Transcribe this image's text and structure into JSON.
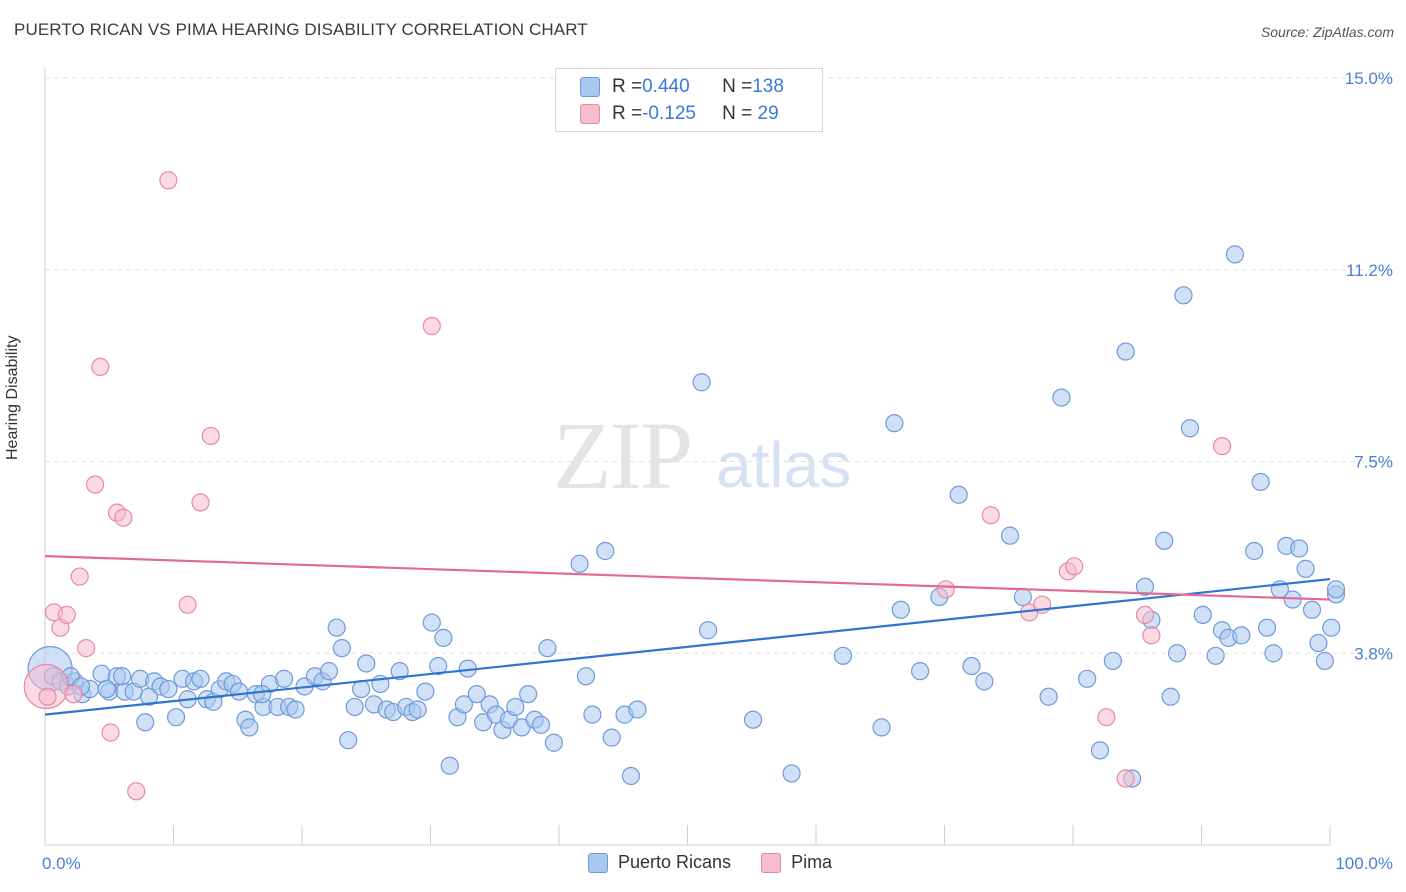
{
  "title": "PUERTO RICAN VS PIMA HEARING DISABILITY CORRELATION CHART",
  "source": "Source: ZipAtlas.com",
  "watermark": {
    "zip": "ZIP",
    "atlas": "atlas"
  },
  "colors": {
    "blue_fill": "#a9c8f0",
    "blue_stroke": "#6f9ad8",
    "blue_line": "#2f74d0",
    "pink_fill": "#f7bccd",
    "pink_stroke": "#e68aa6",
    "pink_line": "#e06a93",
    "tick_text": "#4a7fd1",
    "grid": "#e2e2e2"
  },
  "legend_top": [
    {
      "r_label": "R = ",
      "r_value": "0.440",
      "n_label": "N = ",
      "n_value": "138"
    },
    {
      "r_label": "R = ",
      "r_value": "-0.125",
      "n_label": "N = ",
      "n_value": " 29"
    }
  ],
  "legend_bottom": [
    "Puerto Ricans",
    "Pima"
  ],
  "chart_data": {
    "type": "scatter",
    "title": "PUERTO RICAN VS PIMA HEARING DISABILITY CORRELATION CHART",
    "xlabel": "",
    "ylabel": "Hearing Disability",
    "xlim": [
      0,
      100
    ],
    "ylim": [
      0,
      15
    ],
    "x_tick_labels": [
      "0.0%",
      "100.0%"
    ],
    "y_ticks": [
      3.75,
      7.5,
      11.25,
      15.0
    ],
    "y_tick_labels": [
      "3.8%",
      "7.5%",
      "11.2%",
      "15.0%"
    ],
    "grid": "horizontal dashed",
    "legend_position": "top-center",
    "series": [
      {
        "name": "Puerto Ricans",
        "trend": [
          [
            0,
            2.55
          ],
          [
            100,
            5.2
          ]
        ],
        "points": [
          [
            0.6,
            3.3
          ],
          [
            1.2,
            3.2
          ],
          [
            1.8,
            3.1
          ],
          [
            2.3,
            3.2
          ],
          [
            2.9,
            2.95
          ],
          [
            3.5,
            3.05
          ],
          [
            4.4,
            3.35
          ],
          [
            5.0,
            3.0
          ],
          [
            5.6,
            3.3
          ],
          [
            6.2,
            3.0
          ],
          [
            6.9,
            3.0
          ],
          [
            7.4,
            3.25
          ],
          [
            7.8,
            2.4
          ],
          [
            8.1,
            2.9
          ],
          [
            8.5,
            3.2
          ],
          [
            9.0,
            3.1
          ],
          [
            9.6,
            3.05
          ],
          [
            10.2,
            2.5
          ],
          [
            10.7,
            3.25
          ],
          [
            11.1,
            2.85
          ],
          [
            11.6,
            3.2
          ],
          [
            12.1,
            3.25
          ],
          [
            12.6,
            2.85
          ],
          [
            13.1,
            2.8
          ],
          [
            13.6,
            3.05
          ],
          [
            14.1,
            3.2
          ],
          [
            14.6,
            3.15
          ],
          [
            15.1,
            3.0
          ],
          [
            15.6,
            2.45
          ],
          [
            15.9,
            2.3
          ],
          [
            16.4,
            2.95
          ],
          [
            17.0,
            2.7
          ],
          [
            17.5,
            3.15
          ],
          [
            18.1,
            2.7
          ],
          [
            18.6,
            3.25
          ],
          [
            19.0,
            2.7
          ],
          [
            19.5,
            2.65
          ],
          [
            20.2,
            3.1
          ],
          [
            21.0,
            3.3
          ],
          [
            21.6,
            3.2
          ],
          [
            22.1,
            3.4
          ],
          [
            22.7,
            4.25
          ],
          [
            23.1,
            3.85
          ],
          [
            23.6,
            2.05
          ],
          [
            24.1,
            2.7
          ],
          [
            24.6,
            3.05
          ],
          [
            25.0,
            3.55
          ],
          [
            25.6,
            2.75
          ],
          [
            26.1,
            3.15
          ],
          [
            26.6,
            2.65
          ],
          [
            27.1,
            2.6
          ],
          [
            27.6,
            3.4
          ],
          [
            28.1,
            2.7
          ],
          [
            28.6,
            2.6
          ],
          [
            29.0,
            2.65
          ],
          [
            29.6,
            3.0
          ],
          [
            30.1,
            4.35
          ],
          [
            30.6,
            3.5
          ],
          [
            31.0,
            4.05
          ],
          [
            31.5,
            1.55
          ],
          [
            32.1,
            2.5
          ],
          [
            32.6,
            2.75
          ],
          [
            32.9,
            3.45
          ],
          [
            33.6,
            2.95
          ],
          [
            34.1,
            2.4
          ],
          [
            34.6,
            2.75
          ],
          [
            35.1,
            2.55
          ],
          [
            35.6,
            2.25
          ],
          [
            36.1,
            2.45
          ],
          [
            36.6,
            2.7
          ],
          [
            37.1,
            2.3
          ],
          [
            37.6,
            2.95
          ],
          [
            38.1,
            2.45
          ],
          [
            38.6,
            2.35
          ],
          [
            39.1,
            3.85
          ],
          [
            39.6,
            2.0
          ],
          [
            41.6,
            5.5
          ],
          [
            42.1,
            3.3
          ],
          [
            42.6,
            2.55
          ],
          [
            43.6,
            5.75
          ],
          [
            44.1,
            2.1
          ],
          [
            45.1,
            2.55
          ],
          [
            45.6,
            1.35
          ],
          [
            46.1,
            2.65
          ],
          [
            51.1,
            9.05
          ],
          [
            51.6,
            4.2
          ],
          [
            55.1,
            2.45
          ],
          [
            58.1,
            1.4
          ],
          [
            62.1,
            3.7
          ],
          [
            65.1,
            2.3
          ],
          [
            66.1,
            8.25
          ],
          [
            66.6,
            4.6
          ],
          [
            68.1,
            3.4
          ],
          [
            69.6,
            4.85
          ],
          [
            71.1,
            6.85
          ],
          [
            72.1,
            3.5
          ],
          [
            73.1,
            3.2
          ],
          [
            75.1,
            6.05
          ],
          [
            76.1,
            4.85
          ],
          [
            78.1,
            2.9
          ],
          [
            79.1,
            8.75
          ],
          [
            81.1,
            3.25
          ],
          [
            82.1,
            1.85
          ],
          [
            83.1,
            3.6
          ],
          [
            84.1,
            9.65
          ],
          [
            84.6,
            1.3
          ],
          [
            85.6,
            5.05
          ],
          [
            86.1,
            4.4
          ],
          [
            87.1,
            5.95
          ],
          [
            88.1,
            3.75
          ],
          [
            88.6,
            10.75
          ],
          [
            89.1,
            8.15
          ],
          [
            90.1,
            4.5
          ],
          [
            91.1,
            3.7
          ],
          [
            91.6,
            4.2
          ],
          [
            92.1,
            4.05
          ],
          [
            92.6,
            11.55
          ],
          [
            93.1,
            4.1
          ],
          [
            94.1,
            5.75
          ],
          [
            94.6,
            7.1
          ],
          [
            95.1,
            4.25
          ],
          [
            95.6,
            3.75
          ],
          [
            96.1,
            5.0
          ],
          [
            96.6,
            5.85
          ],
          [
            97.1,
            4.8
          ],
          [
            97.6,
            5.8
          ],
          [
            98.1,
            5.4
          ],
          [
            98.6,
            4.6
          ],
          [
            99.1,
            3.95
          ],
          [
            99.6,
            3.6
          ],
          [
            100.1,
            4.25
          ],
          [
            100.6,
            4.9
          ],
          [
            101.1,
            5.0
          ],
          [
            2.0,
            3.3
          ],
          [
            4.8,
            3.05
          ],
          [
            6.0,
            3.3
          ],
          [
            16.9,
            2.95
          ],
          [
            87.6,
            2.9
          ],
          [
            2.8,
            3.1
          ]
        ],
        "large_point": [
          0.4,
          3.45
        ]
      },
      {
        "name": "Pima",
        "trend": [
          [
            0,
            5.65
          ],
          [
            100,
            4.8
          ]
        ],
        "points": [
          [
            0.2,
            2.9
          ],
          [
            0.7,
            4.55
          ],
          [
            1.2,
            4.25
          ],
          [
            1.7,
            4.5
          ],
          [
            2.2,
            2.95
          ],
          [
            2.7,
            5.25
          ],
          [
            3.2,
            3.85
          ],
          [
            3.9,
            7.05
          ],
          [
            4.3,
            9.35
          ],
          [
            5.1,
            2.2
          ],
          [
            5.6,
            6.5
          ],
          [
            6.1,
            6.4
          ],
          [
            7.1,
            1.05
          ],
          [
            9.6,
            13.0
          ],
          [
            11.1,
            4.7
          ],
          [
            12.1,
            6.7
          ],
          [
            12.9,
            8.0
          ],
          [
            30.1,
            10.15
          ],
          [
            70.1,
            5.0
          ],
          [
            73.6,
            6.45
          ],
          [
            76.6,
            4.55
          ],
          [
            77.6,
            4.7
          ],
          [
            79.6,
            5.35
          ],
          [
            80.1,
            5.45
          ],
          [
            82.6,
            2.5
          ],
          [
            84.1,
            1.3
          ],
          [
            85.6,
            4.5
          ],
          [
            86.1,
            4.1
          ],
          [
            91.6,
            7.8
          ]
        ],
        "large_point": [
          0.1,
          3.1
        ]
      }
    ]
  }
}
